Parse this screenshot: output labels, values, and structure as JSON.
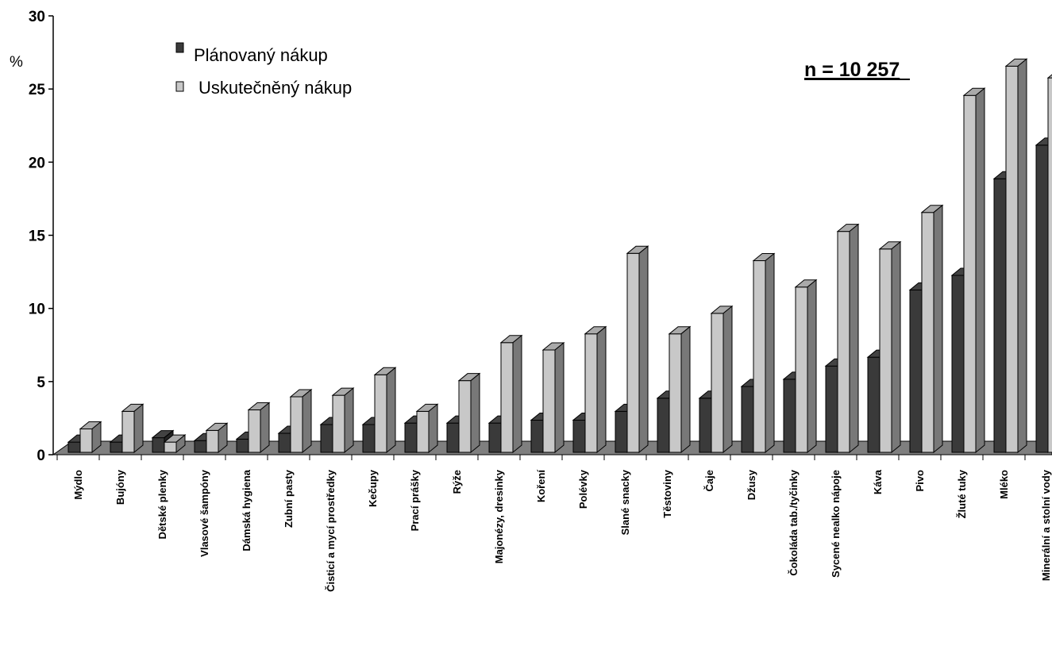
{
  "chart_data": {
    "type": "bar",
    "title": "",
    "xlabel": "",
    "ylabel": "%",
    "annotation": "n = 10 257",
    "ylim": [
      0,
      30
    ],
    "yticks": [
      0,
      5,
      10,
      15,
      20,
      25,
      30
    ],
    "categories": [
      "Mýdlo",
      "Bujóny",
      "Dětské plenky",
      "Vlasové šampóny",
      "Dámská hygiena",
      "Zubní pasty",
      "Čisticí a mycí prostředky",
      "Kečupy",
      "Prací prášky",
      "Rýže",
      "Majonézy, dresinky",
      "Koření",
      "Polévky",
      "Slané snacky",
      "Těstoviny",
      "Čaje",
      "Džusy",
      "Čokoláda tab./tyčinky",
      "Sycené nealko nápoje",
      "Káva",
      "Pivo",
      "Žluté tuky",
      "Mléko",
      "Minerální a stolní vody"
    ],
    "series": [
      {
        "name": "Plánovaný nákup",
        "color": "#3a3a3a",
        "values": [
          0.7,
          0.7,
          1.0,
          0.8,
          0.9,
          1.3,
          1.9,
          1.9,
          2.0,
          2.0,
          2.0,
          2.2,
          2.2,
          2.8,
          3.7,
          3.7,
          4.5,
          5.0,
          5.9,
          6.5,
          11.1,
          12.1,
          18.7,
          21.0
        ]
      },
      {
        "name": "Uskutečněný nákup",
        "color": "#c8c8c8",
        "values": [
          1.6,
          2.8,
          0.7,
          1.5,
          2.9,
          3.8,
          3.9,
          5.3,
          2.8,
          4.9,
          7.5,
          7.0,
          8.1,
          13.6,
          8.1,
          9.5,
          13.1,
          11.3,
          15.1,
          13.9,
          16.4,
          24.4,
          26.4,
          25.6
        ]
      }
    ]
  }
}
